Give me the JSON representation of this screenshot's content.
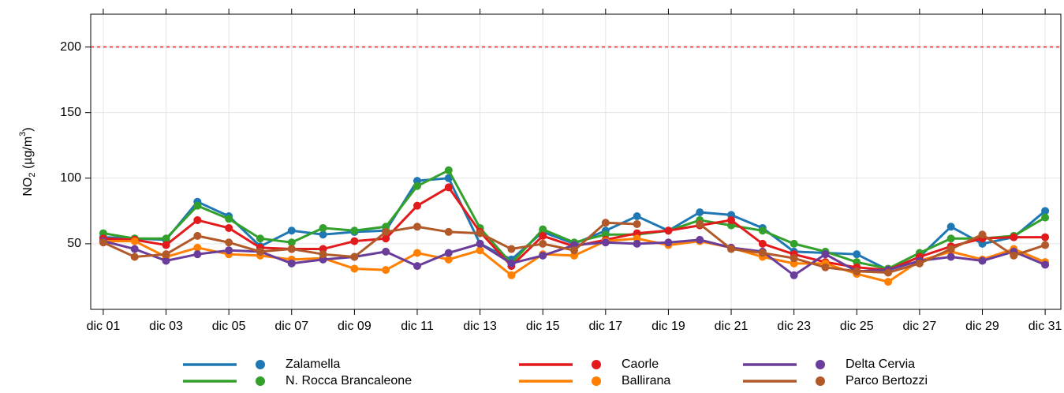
{
  "chart_data": {
    "type": "line",
    "y_label": [
      "NO",
      "2",
      " (µg/m",
      "3",
      ")"
    ],
    "categories": [
      "dic 01",
      null,
      "dic 03",
      null,
      "dic 05",
      null,
      "dic 07",
      null,
      "dic 09",
      null,
      "dic 11",
      null,
      "dic 13",
      null,
      "dic 15",
      null,
      "dic 17",
      null,
      "dic 19",
      null,
      "dic 21",
      null,
      "dic 23",
      null,
      "dic 25",
      null,
      "dic 27",
      null,
      "dic 29",
      null,
      "dic 31"
    ],
    "ylim": [
      0,
      225
    ],
    "yticks": [
      50,
      100,
      150,
      200
    ],
    "grid": true,
    "reference_line": {
      "value": 200,
      "color": "#e41a1c"
    },
    "series": [
      {
        "name": "Zalamella",
        "color": "#1f78b4",
        "values": [
          55,
          54,
          53,
          82,
          71,
          48,
          60,
          57,
          59,
          60,
          98,
          100,
          50,
          38,
          59,
          50,
          60,
          71,
          60,
          74,
          72,
          62,
          44,
          43,
          42,
          30,
          40,
          63,
          50,
          55,
          75
        ]
      },
      {
        "name": "N. Rocca Brancaleone",
        "color": "#33a02c",
        "values": [
          58,
          54,
          54,
          79,
          69,
          54,
          51,
          62,
          60,
          63,
          94,
          106,
          62,
          35,
          61,
          51,
          57,
          57,
          60,
          68,
          64,
          60,
          50,
          44,
          36,
          31,
          43,
          54,
          54,
          56,
          70
        ]
      },
      {
        "name": "Caorle",
        "color": "#e31a1c",
        "values": [
          54,
          53,
          49,
          68,
          62,
          47,
          46,
          46,
          52,
          54,
          79,
          93,
          59,
          33,
          56,
          48,
          53,
          58,
          60,
          64,
          68,
          50,
          42,
          36,
          32,
          30,
          40,
          48,
          54,
          55,
          55
        ]
      },
      {
        "name": "Ballirana",
        "color": "#ff7f00",
        "values": [
          52,
          52,
          40,
          47,
          42,
          41,
          38,
          39,
          31,
          30,
          43,
          38,
          45,
          26,
          42,
          41,
          52,
          54,
          49,
          52,
          47,
          40,
          35,
          35,
          27,
          21,
          37,
          44,
          38,
          46,
          36
        ]
      },
      {
        "name": "Delta Cervia",
        "color": "#6a3d9a",
        "values": [
          52,
          46,
          37,
          42,
          45,
          44,
          35,
          38,
          40,
          44,
          33,
          43,
          50,
          35,
          41,
          49,
          51,
          50,
          51,
          53,
          47,
          44,
          26,
          42,
          29,
          30,
          37,
          40,
          37,
          44,
          34
        ]
      },
      {
        "name": "Parco Bertozzi",
        "color": "#b15928",
        "values": [
          51,
          40,
          42,
          56,
          51,
          44,
          46,
          42,
          40,
          59,
          63,
          59,
          58,
          46,
          50,
          45,
          66,
          65,
          null,
          65,
          46,
          43,
          39,
          32,
          29,
          28,
          35,
          46,
          57,
          41,
          49
        ]
      }
    ]
  }
}
